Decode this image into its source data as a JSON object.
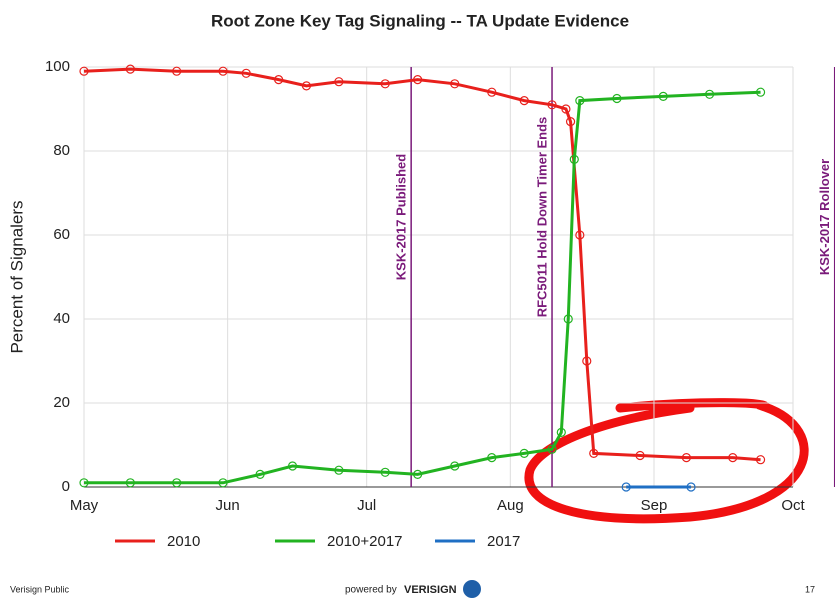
{
  "chart_data": {
    "type": "line",
    "title": "Root Zone Key Tag Signaling -- TA Update Evidence",
    "ylabel": "Percent of Signalers",
    "xlim": [
      0,
      153
    ],
    "ylim": [
      0,
      100
    ],
    "xticks": [
      {
        "value": 0,
        "label": "May"
      },
      {
        "value": 31,
        "label": "Jun"
      },
      {
        "value": 61,
        "label": "Jul"
      },
      {
        "value": 92,
        "label": "Aug"
      },
      {
        "value": 123,
        "label": "Sep"
      },
      {
        "value": 153,
        "label": "Oct"
      }
    ],
    "yticks": [
      0,
      20,
      40,
      60,
      80,
      100
    ],
    "grid": true,
    "series": [
      {
        "name": "2010",
        "color": "#e8201c",
        "x": [
          0,
          10,
          20,
          30,
          35,
          42,
          48,
          55,
          65,
          72,
          80,
          88,
          95,
          101,
          104,
          105,
          107,
          108.5,
          110,
          120,
          130,
          140,
          146
        ],
        "values": [
          99,
          99.5,
          99,
          99,
          98.5,
          97,
          95.5,
          96.5,
          96,
          97,
          96,
          94,
          92,
          91,
          90,
          87,
          60,
          30,
          8,
          7.5,
          7,
          7,
          6.5
        ]
      },
      {
        "name": "2010+2017",
        "color": "#22b321",
        "x": [
          0,
          10,
          20,
          30,
          38,
          45,
          55,
          65,
          72,
          80,
          88,
          95,
          101,
          103,
          104.5,
          105.8,
          107,
          115,
          125,
          135,
          146
        ],
        "values": [
          1,
          1,
          1,
          1,
          3,
          5,
          4,
          3.5,
          3,
          5,
          7,
          8,
          9,
          13,
          40,
          78,
          92,
          92.5,
          93,
          93.5,
          94
        ]
      },
      {
        "name": "2017",
        "color": "#1f6fc4",
        "x": [
          117,
          131
        ],
        "values": [
          0,
          0
        ]
      }
    ],
    "annotations": [
      {
        "text": "KSK-2017 Published",
        "x": 70.6
      },
      {
        "text": "RFC5011 Hold Down Timer Ends",
        "x": 101
      },
      {
        "text": "KSK-2017 Rollover",
        "x": 162
      }
    ]
  },
  "footer": {
    "left": "Verisign Public",
    "center": "powered by",
    "brand": "VERISIGN",
    "page": "17"
  }
}
